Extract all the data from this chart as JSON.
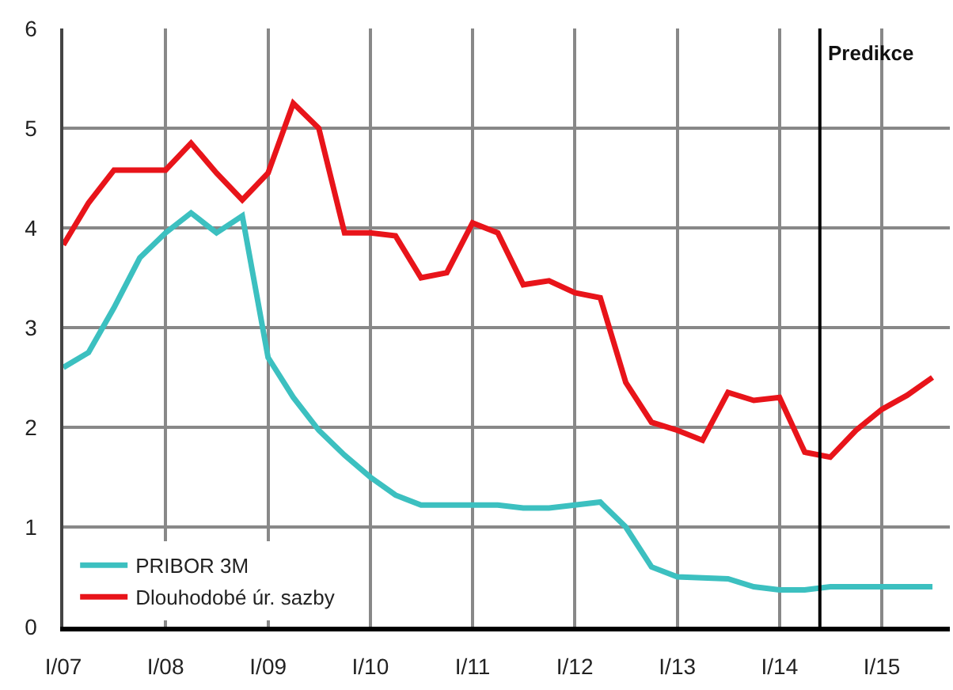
{
  "chart_data": {
    "type": "line",
    "x": [
      "2007-01",
      "2007-04",
      "2007-07",
      "2007-10",
      "2008-01",
      "2008-04",
      "2008-07",
      "2008-10",
      "2009-01",
      "2009-04",
      "2009-07",
      "2009-10",
      "2010-01",
      "2010-04",
      "2010-07",
      "2010-10",
      "2011-01",
      "2011-04",
      "2011-07",
      "2011-10",
      "2012-01",
      "2012-04",
      "2012-07",
      "2012-10",
      "2013-01",
      "2013-04",
      "2013-07",
      "2013-10",
      "2014-01",
      "2014-04",
      "2014-07",
      "2014-10",
      "2015-01",
      "2015-04",
      "2015-07"
    ],
    "series": [
      {
        "name": "PRIBOR 3M",
        "color": "#3cc0c0",
        "values": [
          2.6,
          2.75,
          3.2,
          3.7,
          3.95,
          4.15,
          3.95,
          4.12,
          2.7,
          2.3,
          1.97,
          1.72,
          1.5,
          1.32,
          1.22,
          1.22,
          1.22,
          1.22,
          1.19,
          1.19,
          1.22,
          1.25,
          1.0,
          0.6,
          0.5,
          0.49,
          0.48,
          0.4,
          0.37,
          0.37,
          0.4,
          0.4,
          0.4,
          0.4,
          0.4
        ]
      },
      {
        "name": "Dlouhodobé úr. sazby",
        "color": "#e8141a",
        "values": [
          3.83,
          4.25,
          4.58,
          4.58,
          4.58,
          4.85,
          4.55,
          4.28,
          4.55,
          5.25,
          5.0,
          3.95,
          3.95,
          3.92,
          3.5,
          3.55,
          4.05,
          3.95,
          3.43,
          3.47,
          3.35,
          3.3,
          2.45,
          2.05,
          1.97,
          1.87,
          2.35,
          2.27,
          2.3,
          1.75,
          1.7,
          1.97,
          2.18,
          2.32,
          2.5
        ]
      }
    ],
    "xlim": [
      "2007-01",
      "2015-09"
    ],
    "xticks": [
      {
        "value": "2007-01",
        "label": "I/07"
      },
      {
        "value": "2008-01",
        "label": "I/08"
      },
      {
        "value": "2009-01",
        "label": "I/09"
      },
      {
        "value": "2010-01",
        "label": "I/10"
      },
      {
        "value": "2011-01",
        "label": "I/11"
      },
      {
        "value": "2012-01",
        "label": "I/12"
      },
      {
        "value": "2013-01",
        "label": "I/13"
      },
      {
        "value": "2014-01",
        "label": "I/14"
      },
      {
        "value": "2015-01",
        "label": "I/15"
      }
    ],
    "ylim": [
      0,
      6
    ],
    "yticks": [
      0,
      1,
      2,
      3,
      4,
      5,
      6
    ],
    "ref_lines": [
      {
        "axis": "x",
        "value": "2014-05-25",
        "label": "Predikce",
        "color": "#000000"
      }
    ],
    "grid": true,
    "legend": "bottom left",
    "marker": "none",
    "line_style": "solid"
  }
}
